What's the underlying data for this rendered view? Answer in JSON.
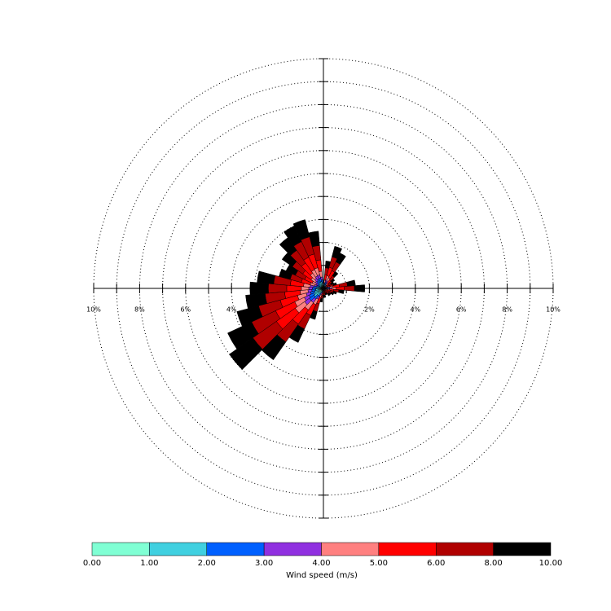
{
  "chart_data": {
    "type": "windrose",
    "directions": [
      0,
      10,
      20,
      30,
      40,
      50,
      60,
      70,
      80,
      90,
      100,
      110,
      120,
      130,
      140,
      150,
      160,
      170,
      180,
      190,
      200,
      210,
      220,
      230,
      240,
      250,
      260,
      270,
      280,
      290,
      300,
      310,
      320,
      330,
      340,
      350
    ],
    "sector_width": 10,
    "rlim": [
      0,
      10
    ],
    "rgrid": [
      1,
      2,
      3,
      4,
      5,
      6,
      7,
      8,
      9,
      10
    ],
    "rticks": [
      {
        "value": 2,
        "label": "2%"
      },
      {
        "value": 4,
        "label": "4%"
      },
      {
        "value": 6,
        "label": "6%"
      },
      {
        "value": 8,
        "label": "8%"
      },
      {
        "value": 10,
        "label": "10%"
      }
    ],
    "series": [
      {
        "color": "#80ffd4",
        "values": [
          0.015,
          0.06,
          0.095,
          0.085,
          0.045,
          0.03,
          0.025,
          0.03,
          0.07,
          0.09,
          0.045,
          0.03,
          0.025,
          0.02,
          0.02,
          0.015,
          0.015,
          0.02,
          0.02,
          0.03,
          0.07,
          0.13,
          0.19,
          0.25,
          0.23,
          0.195,
          0.17,
          0.16,
          0.145,
          0.1,
          0.09,
          0.11,
          0.135,
          0.15,
          0.155,
          0.125
        ]
      },
      {
        "color": "#40d0e0",
        "values": [
          0.015,
          0.06,
          0.095,
          0.085,
          0.045,
          0.03,
          0.025,
          0.03,
          0.07,
          0.09,
          0.045,
          0.03,
          0.025,
          0.02,
          0.02,
          0.015,
          0.015,
          0.02,
          0.02,
          0.03,
          0.07,
          0.13,
          0.19,
          0.25,
          0.23,
          0.195,
          0.17,
          0.16,
          0.145,
          0.1,
          0.09,
          0.11,
          0.135,
          0.15,
          0.155,
          0.125
        ]
      },
      {
        "color": "#0060ff",
        "values": [
          0.015,
          0.06,
          0.095,
          0.085,
          0.045,
          0.03,
          0.025,
          0.03,
          0.07,
          0.09,
          0.045,
          0.03,
          0.025,
          0.02,
          0.02,
          0.015,
          0.015,
          0.02,
          0.02,
          0.03,
          0.07,
          0.13,
          0.19,
          0.25,
          0.23,
          0.195,
          0.17,
          0.16,
          0.145,
          0.1,
          0.09,
          0.11,
          0.135,
          0.15,
          0.155,
          0.125
        ]
      },
      {
        "color": "#9030e0",
        "values": [
          0.015,
          0.06,
          0.095,
          0.085,
          0.045,
          0.03,
          0.025,
          0.03,
          0.07,
          0.09,
          0.045,
          0.03,
          0.025,
          0.02,
          0.02,
          0.015,
          0.015,
          0.02,
          0.02,
          0.03,
          0.07,
          0.13,
          0.19,
          0.25,
          0.23,
          0.195,
          0.17,
          0.16,
          0.145,
          0.1,
          0.09,
          0.11,
          0.135,
          0.15,
          0.155,
          0.125
        ]
      },
      {
        "color": "#ff8080",
        "values": [
          0.03,
          0.12,
          0.19,
          0.17,
          0.09,
          0.06,
          0.05,
          0.06,
          0.14,
          0.18,
          0.09,
          0.06,
          0.05,
          0.04,
          0.04,
          0.03,
          0.03,
          0.04,
          0.04,
          0.06,
          0.14,
          0.26,
          0.38,
          0.5,
          0.46,
          0.39,
          0.34,
          0.32,
          0.29,
          0.2,
          0.18,
          0.22,
          0.27,
          0.3,
          0.31,
          0.25
        ]
      },
      {
        "color": "#ff0000",
        "values": [
          0.06,
          0.24,
          0.38,
          0.34,
          0.18,
          0.12,
          0.1,
          0.12,
          0.28,
          0.36,
          0.18,
          0.12,
          0.1,
          0.08,
          0.08,
          0.06,
          0.06,
          0.08,
          0.08,
          0.12,
          0.28,
          0.52,
          0.76,
          1,
          0.92,
          0.78,
          0.68,
          0.64,
          0.58,
          0.4,
          0.36,
          0.44,
          0.54,
          0.6,
          0.62,
          0.5
        ]
      },
      {
        "color": "#b00000",
        "values": [
          0.075,
          0.3,
          0.475,
          0.425,
          0.225,
          0.15,
          0.125,
          0.15,
          0.35,
          0.45,
          0.225,
          0.15,
          0.125,
          0.1,
          0.1,
          0.075,
          0.075,
          0.1,
          0.1,
          0.15,
          0.35,
          0.65,
          0.95,
          1.25,
          1.15,
          0.975,
          0.85,
          0.8,
          0.725,
          0.5,
          0.45,
          0.55,
          0.675,
          0.75,
          0.775,
          0.625
        ]
      },
      {
        "color": "#000000",
        "values": [
          0.075,
          0.3,
          0.475,
          0.425,
          0.225,
          0.15,
          0.125,
          0.15,
          0.35,
          0.45,
          0.225,
          0.15,
          0.125,
          0.1,
          0.1,
          0.075,
          0.075,
          0.1,
          0.1,
          0.15,
          0.35,
          0.65,
          0.95,
          1.25,
          1.15,
          0.975,
          0.85,
          0.8,
          0.725,
          0.5,
          0.45,
          0.55,
          0.675,
          0.75,
          0.775,
          0.625
        ]
      }
    ],
    "colorbar": {
      "label": "Wind speed (m/s)",
      "ticks": [
        {
          "value": 0,
          "label": "0.00"
        },
        {
          "value": 1,
          "label": "1.00"
        },
        {
          "value": 2,
          "label": "2.00"
        },
        {
          "value": 3,
          "label": "3.00"
        },
        {
          "value": 4,
          "label": "4.00"
        },
        {
          "value": 5,
          "label": "5.00"
        },
        {
          "value": 6,
          "label": "6.00"
        },
        {
          "value": 8,
          "label": "8.00"
        },
        {
          "value": 10,
          "label": "10.00"
        }
      ]
    }
  }
}
